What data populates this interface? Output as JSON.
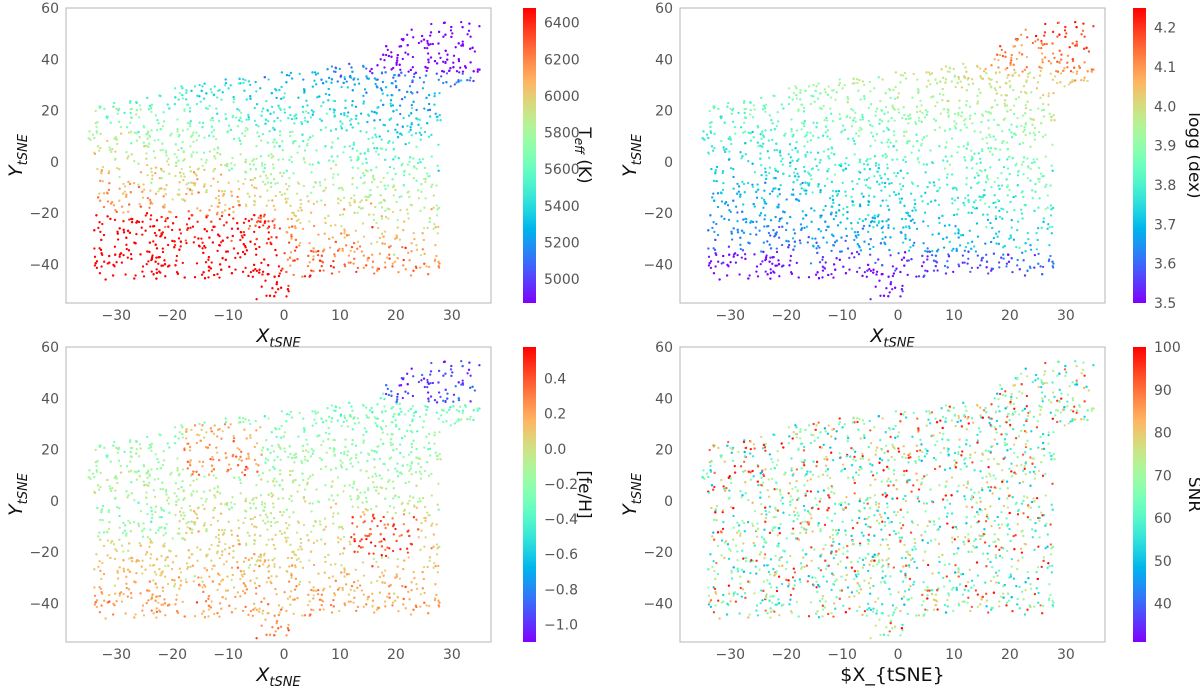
{
  "chart_data": [
    {
      "type": "scatter",
      "panel": "top-left",
      "xlabel": "X",
      "xlabel_sub": "tSNE",
      "ylabel": "Y",
      "ylabel_sub": "tSNE",
      "xlim": [
        -39,
        37
      ],
      "ylim": [
        -55,
        60
      ],
      "xticks": [
        -30,
        -20,
        -10,
        0,
        10,
        20,
        30
      ],
      "yticks": [
        -40,
        -20,
        0,
        20,
        40,
        60
      ],
      "xtick_labels": [
        "−30",
        "−20",
        "−10",
        "0",
        "10",
        "20",
        "30"
      ],
      "ytick_labels": [
        "−40",
        "−20",
        "0",
        "20",
        "40",
        "60"
      ],
      "colorbar": {
        "label": "T",
        "label_sub": "eff",
        "label_tail": " (K)",
        "range": [
          4870,
          6480
        ],
        "ticks": [
          5000,
          5200,
          5400,
          5600,
          5800,
          6000,
          6200,
          6400
        ],
        "tick_labels": [
          "5000",
          "5200",
          "5400",
          "5600",
          "5800",
          "6000",
          "6200",
          "6400"
        ]
      },
      "color_field": "teff"
    },
    {
      "type": "scatter",
      "panel": "top-right",
      "xlabel": "X",
      "xlabel_sub": "tSNE",
      "ylabel": "Y",
      "ylabel_sub": "tSNE",
      "xlim": [
        -39,
        37
      ],
      "ylim": [
        -55,
        60
      ],
      "xticks": [
        -30,
        -20,
        -10,
        0,
        10,
        20,
        30
      ],
      "yticks": [
        -40,
        -20,
        0,
        20,
        40,
        60
      ],
      "xtick_labels": [
        "−30",
        "−20",
        "−10",
        "0",
        "10",
        "20",
        "30"
      ],
      "ytick_labels": [
        "−40",
        "−20",
        "0",
        "20",
        "40",
        "60"
      ],
      "colorbar": {
        "label": "logg (dex)",
        "label_sub": "",
        "label_tail": "",
        "range": [
          3.5,
          4.25
        ],
        "ticks": [
          3.5,
          3.6,
          3.7,
          3.8,
          3.9,
          4.0,
          4.1,
          4.2
        ],
        "tick_labels": [
          "3.5",
          "3.6",
          "3.7",
          "3.8",
          "3.9",
          "4.0",
          "4.1",
          "4.2"
        ]
      },
      "color_field": "logg"
    },
    {
      "type": "scatter",
      "panel": "bottom-left",
      "xlabel": "X",
      "xlabel_sub": "tSNE",
      "ylabel": "Y",
      "ylabel_sub": "tSNE",
      "xlim": [
        -39,
        37
      ],
      "ylim": [
        -55,
        60
      ],
      "xticks": [
        -30,
        -20,
        -10,
        0,
        10,
        20,
        30
      ],
      "yticks": [
        -40,
        -20,
        0,
        20,
        40,
        60
      ],
      "xtick_labels": [
        "−30",
        "−20",
        "−10",
        "0",
        "10",
        "20",
        "30"
      ],
      "ytick_labels": [
        "−40",
        "−20",
        "0",
        "20",
        "40",
        "60"
      ],
      "colorbar": {
        "label": "[fe/H]",
        "label_sub": "",
        "label_tail": "",
        "range": [
          -1.1,
          0.58
        ],
        "ticks": [
          -1.0,
          -0.8,
          -0.6,
          -0.4,
          -0.2,
          0.0,
          0.2,
          0.4
        ],
        "tick_labels": [
          "−1.0",
          "−0.8",
          "−0.6",
          "−0.4",
          "−0.2",
          "0.0",
          "0.2",
          "0.4"
        ]
      },
      "color_field": "feh"
    },
    {
      "type": "scatter",
      "panel": "bottom-right",
      "xlabel": "$X_{tSNE}",
      "xlabel_sub": "",
      "ylabel": "Y",
      "ylabel_sub": "tSNE",
      "xlim": [
        -39,
        37
      ],
      "ylim": [
        -55,
        60
      ],
      "xticks": [
        -30,
        -20,
        -10,
        0,
        10,
        20,
        30
      ],
      "yticks": [
        -40,
        -20,
        0,
        20,
        40,
        60
      ],
      "xtick_labels": [
        "−30",
        "−20",
        "−10",
        "0",
        "10",
        "20",
        "30"
      ],
      "ytick_labels": [
        "−40",
        "−20",
        "0",
        "20",
        "40",
        "60"
      ],
      "colorbar": {
        "label": "SNR",
        "label_sub": "",
        "label_tail": "",
        "range": [
          31,
          100
        ],
        "ticks": [
          40,
          50,
          60,
          70,
          80,
          90,
          100
        ],
        "tick_labels": [
          "40",
          "50",
          "60",
          "70",
          "80",
          "90",
          "100"
        ]
      },
      "color_field": "snr"
    }
  ],
  "scatter_points": {
    "count": 2600,
    "seed": 12345,
    "colormap": "rainbow"
  }
}
